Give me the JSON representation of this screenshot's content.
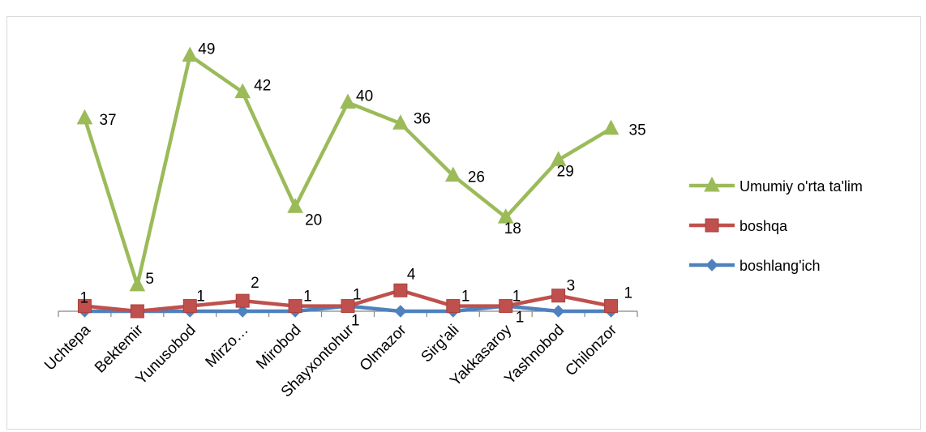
{
  "chart_data": {
    "type": "line",
    "categories": [
      "Uchtepa",
      "Bektemir",
      "Yunusobod",
      "Mirzo…",
      "Mirobod",
      "Shayxontohur",
      "Olmazor",
      "Sirg'ali",
      "Yakkasaroy",
      "Yashnobod",
      "Chilonzor"
    ],
    "series": [
      {
        "name": "Umumiy o'rta ta'lim",
        "values": [
          37,
          5,
          49,
          42,
          20,
          40,
          36,
          26,
          18,
          29,
          35
        ],
        "color": "#9bbb59",
        "marker": "triangle",
        "labels": [
          "37",
          "5",
          "49",
          "42",
          "20",
          "40",
          "36",
          "26",
          "18",
          "29",
          "35"
        ]
      },
      {
        "name": "boshqa",
        "values": [
          1,
          0,
          1,
          2,
          1,
          1,
          4,
          1,
          1,
          3,
          1
        ],
        "color": "#c0504d",
        "marker": "square",
        "labels": [
          "1",
          "",
          "1",
          "2",
          "1",
          "1",
          "4",
          "1",
          "1",
          "3",
          "1"
        ]
      },
      {
        "name": "boshlang'ich",
        "values": [
          0,
          0,
          0,
          0,
          0,
          1,
          0,
          0,
          1,
          0,
          0
        ],
        "color": "#4f81bd",
        "marker": "diamond",
        "labels": [
          "",
          "",
          "",
          "",
          "",
          "1",
          "",
          "",
          "1",
          "",
          ""
        ]
      }
    ],
    "ylim": [
      0,
      55
    ],
    "grid": false,
    "legend_position": "right"
  }
}
